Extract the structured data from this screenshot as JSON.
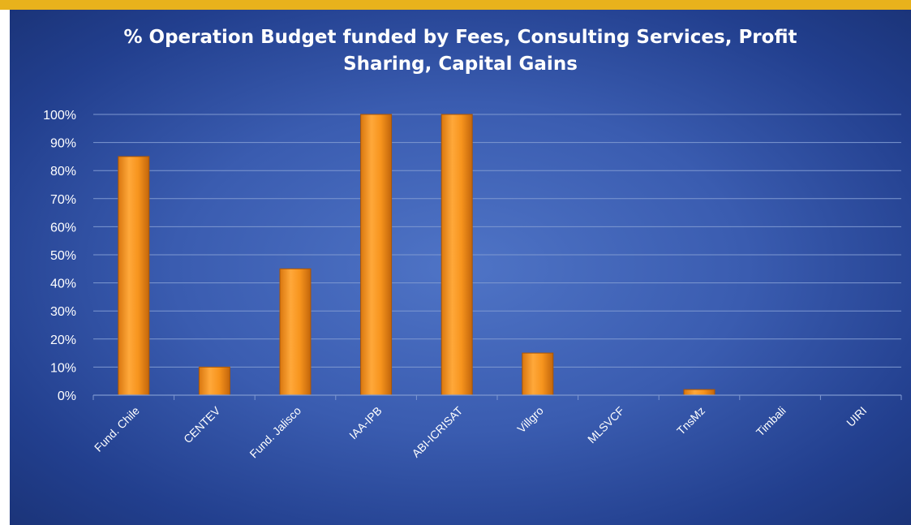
{
  "chart_data": {
    "type": "bar",
    "title_lines": [
      "% Operation Budget funded by Fees, Consulting Services, Profit",
      "Sharing, Capital Gains"
    ],
    "categories": [
      "Fund. Chile",
      "CENTEV",
      "Fund. Jalisco",
      "IAA-IPB",
      "ABI-ICRISAT",
      "Villgro",
      "MLSVCF",
      "TnsMz",
      "Timbali",
      "UIRI"
    ],
    "values": [
      85,
      10,
      45,
      100,
      100,
      15,
      0,
      2,
      0,
      0
    ],
    "y_ticks": [
      "0%",
      "10%",
      "20%",
      "30%",
      "40%",
      "50%",
      "60%",
      "70%",
      "80%",
      "90%",
      "100%"
    ],
    "ylim": [
      0,
      100
    ],
    "grid": true,
    "colors": {
      "bar_light": "#ffb04a",
      "bar_mid": "#f7941d",
      "bar_dark": "#c96a0c",
      "grid": "#7e98d0",
      "text": "#ffffff",
      "accent_strip": "#e8b21c"
    }
  }
}
